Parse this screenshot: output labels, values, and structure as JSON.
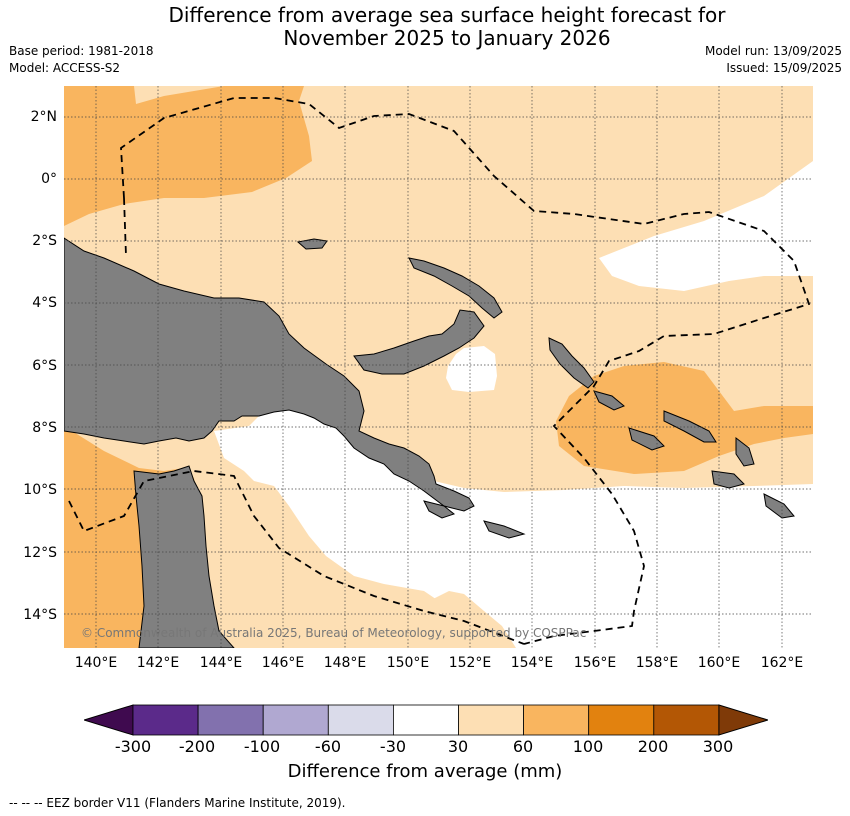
{
  "title_line1": "Difference from average sea surface height forecast for",
  "title_line2": "November 2025 to January 2026",
  "base_period": "Base period: 1981-2018",
  "model": "Model: ACCESS-S2",
  "model_run": "Model run: 13/09/2025",
  "issued": "Issued: 15/09/2025",
  "copyright": "© Commonwealth of Australia 2025, Bureau of Meteorology, supported by COSPPac",
  "lat_labels": [
    "2°N",
    "0°",
    "2°S",
    "4°S",
    "6°S",
    "8°S",
    "10°S",
    "12°S",
    "14°S"
  ],
  "lon_labels": [
    "140°E",
    "142°E",
    "144°E",
    "146°E",
    "148°E",
    "150°E",
    "152°E",
    "154°E",
    "156°E",
    "158°E",
    "160°E",
    "162°E"
  ],
  "colorbar": {
    "title": "Difference from average (mm)",
    "ticks": [
      "-300",
      "-200",
      "-100",
      "-60",
      "-30",
      "30",
      "60",
      "100",
      "200",
      "300"
    ],
    "colors": [
      "#3f0a4f",
      "#5b2a8a",
      "#8271ae",
      "#b0a8d1",
      "#dadbea",
      "#ffffff",
      "#fddfb4",
      "#f9b55f",
      "#e2820f",
      "#b35705",
      "#7f3a08"
    ]
  },
  "eez_note": "--  --  -- EEZ border V11 (Flanders Marine Institute, 2019)."
}
